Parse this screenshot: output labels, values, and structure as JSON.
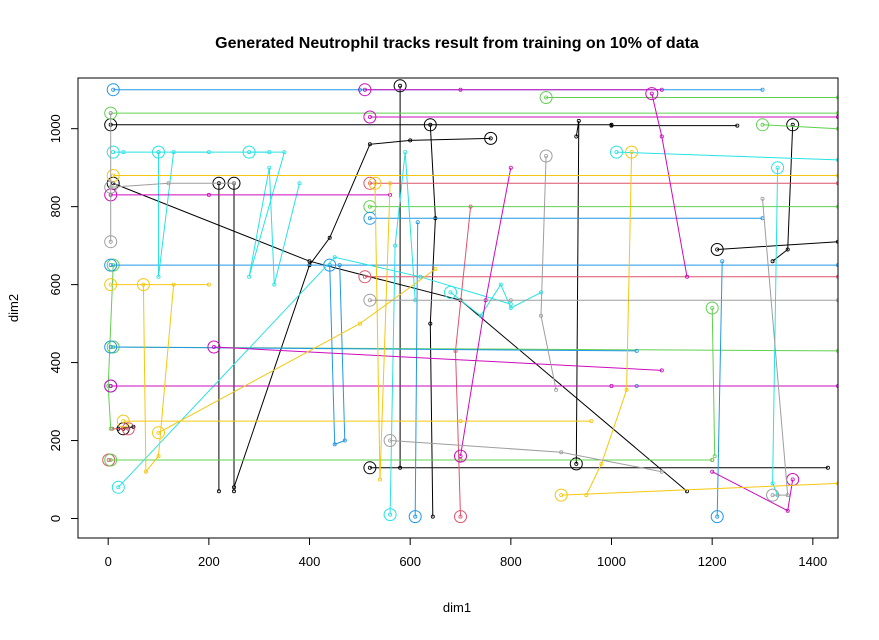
{
  "chart_data": {
    "type": "line",
    "title": "Generated Neutrophil tracks result from training on 10% of data",
    "xlabel": "dim1",
    "ylabel": "dim2",
    "xlim": [
      -60,
      1450
    ],
    "ylim": [
      -50,
      1130
    ],
    "x_ticks": [
      "0",
      "200",
      "400",
      "600",
      "800",
      "1000",
      "1200",
      "1400"
    ],
    "y_ticks": [
      "0",
      "200",
      "400",
      "600",
      "800",
      "1000"
    ],
    "x_tick_values": [
      0,
      200,
      400,
      600,
      800,
      1000,
      1200,
      1400
    ],
    "y_tick_values": [
      0,
      200,
      400,
      600,
      800,
      1000
    ],
    "palette": [
      "#000000",
      "#DF536B",
      "#61D04F",
      "#2297E6",
      "#28E2E5",
      "#CD0BBC",
      "#F5C710",
      "#9E9E9E"
    ],
    "grid": false,
    "legend": "none",
    "series": [
      {
        "color": "#000000",
        "points": [
          [
            5,
            1010
          ],
          [
            1000,
            1010
          ],
          [
            1000,
            1008
          ],
          [
            1250,
            1008
          ]
        ]
      },
      {
        "color": "#000000",
        "points": [
          [
            520,
            130
          ],
          [
            1430,
            130
          ]
        ]
      },
      {
        "color": "#000000",
        "points": [
          [
            640,
            1010
          ],
          [
            650,
            770
          ],
          [
            640,
            500
          ],
          [
            645,
            5
          ]
        ]
      },
      {
        "color": "#000000",
        "points": [
          [
            220,
            860
          ],
          [
            220,
            70
          ]
        ]
      },
      {
        "color": "#000000",
        "points": [
          [
            250,
            860
          ],
          [
            250,
            70
          ]
        ]
      },
      {
        "color": "#000000",
        "points": [
          [
            760,
            975
          ],
          [
            600,
            970
          ],
          [
            520,
            960
          ],
          [
            440,
            720
          ],
          [
            400,
            650
          ],
          [
            250,
            80
          ]
        ]
      },
      {
        "color": "#000000",
        "points": [
          [
            1210,
            690
          ],
          [
            1450,
            710
          ]
        ]
      },
      {
        "color": "#000000",
        "points": [
          [
            10,
            860
          ],
          [
            400,
            660
          ],
          [
            700,
            560
          ],
          [
            1150,
            70
          ]
        ]
      },
      {
        "color": "#000000",
        "points": [
          [
            580,
            1110
          ],
          [
            580,
            130
          ]
        ]
      },
      {
        "color": "#000000",
        "points": [
          [
            30,
            230
          ],
          [
            20,
            230
          ],
          [
            50,
            235
          ]
        ]
      },
      {
        "color": "#000000",
        "points": [
          [
            1360,
            1010
          ],
          [
            1350,
            690
          ],
          [
            1320,
            660
          ]
        ]
      },
      {
        "color": "#000000",
        "points": [
          [
            930,
            140
          ],
          [
            935,
            1020
          ],
          [
            930,
            980
          ]
        ]
      },
      {
        "color": "#DF536B",
        "points": [
          [
            520,
            860
          ],
          [
            1450,
            860
          ]
        ]
      },
      {
        "color": "#DF536B",
        "points": [
          [
            1,
            150
          ],
          [
            700,
            150
          ],
          [
            1200,
            150
          ]
        ]
      },
      {
        "color": "#DF536B",
        "points": [
          [
            510,
            620
          ],
          [
            1450,
            620
          ]
        ]
      },
      {
        "color": "#DF536B",
        "points": [
          [
            700,
            5
          ],
          [
            690,
            430
          ],
          [
            720,
            800
          ]
        ]
      },
      {
        "color": "#DF536B",
        "points": [
          [
            40,
            230
          ],
          [
            8,
            230
          ]
        ]
      },
      {
        "color": "#61D04F",
        "points": [
          [
            5,
            1040
          ],
          [
            1450,
            1040
          ]
        ]
      },
      {
        "color": "#61D04F",
        "points": [
          [
            5,
            150
          ],
          [
            1200,
            150
          ]
        ]
      },
      {
        "color": "#61D04F",
        "points": [
          [
            520,
            800
          ],
          [
            1450,
            800
          ]
        ]
      },
      {
        "color": "#61D04F",
        "points": [
          [
            870,
            1080
          ],
          [
            1450,
            1080
          ]
        ]
      },
      {
        "color": "#61D04F",
        "points": [
          [
            10,
            440
          ],
          [
            1450,
            430
          ]
        ]
      },
      {
        "color": "#61D04F",
        "points": [
          [
            10,
            650
          ],
          [
            0,
            340
          ],
          [
            5,
            230
          ]
        ]
      },
      {
        "color": "#61D04F",
        "points": [
          [
            1200,
            540
          ],
          [
            1205,
            160
          ]
        ]
      },
      {
        "color": "#61D04F",
        "points": [
          [
            1300,
            1010
          ],
          [
            1450,
            1000
          ]
        ]
      },
      {
        "color": "#2297E6",
        "points": [
          [
            10,
            1100
          ],
          [
            500,
            1100
          ],
          [
            1300,
            1100
          ]
        ]
      },
      {
        "color": "#2297E6",
        "points": [
          [
            5,
            650
          ],
          [
            1450,
            650
          ]
        ]
      },
      {
        "color": "#2297E6",
        "points": [
          [
            5,
            440
          ],
          [
            1050,
            430
          ]
        ]
      },
      {
        "color": "#2297E6",
        "points": [
          [
            5,
            340
          ],
          [
            1050,
            340
          ]
        ]
      },
      {
        "color": "#2297E6",
        "points": [
          [
            440,
            650
          ],
          [
            450,
            190
          ],
          [
            470,
            200
          ],
          [
            460,
            650
          ]
        ]
      },
      {
        "color": "#2297E6",
        "points": [
          [
            1210,
            5
          ],
          [
            1220,
            660
          ]
        ]
      },
      {
        "color": "#2297E6",
        "points": [
          [
            520,
            770
          ],
          [
            1300,
            770
          ]
        ]
      },
      {
        "color": "#2297E6",
        "points": [
          [
            610,
            5
          ],
          [
            615,
            760
          ]
        ]
      },
      {
        "color": "#28E2E5",
        "points": [
          [
            10,
            940
          ],
          [
            30,
            940
          ],
          [
            100,
            940
          ],
          [
            100,
            620
          ],
          [
            130,
            940
          ],
          [
            200,
            940
          ]
        ]
      },
      {
        "color": "#28E2E5",
        "points": [
          [
            20,
            80
          ],
          [
            450,
            670
          ],
          [
            620,
            620
          ],
          [
            800,
            550
          ]
        ]
      },
      {
        "color": "#28E2E5",
        "points": [
          [
            280,
            940
          ],
          [
            350,
            940
          ],
          [
            280,
            620
          ],
          [
            320,
            900
          ],
          [
            330,
            600
          ],
          [
            380,
            860
          ]
        ]
      },
      {
        "color": "#28E2E5",
        "points": [
          [
            100,
            940
          ],
          [
            320,
            940
          ]
        ]
      },
      {
        "color": "#28E2E5",
        "points": [
          [
            560,
            10
          ],
          [
            570,
            700
          ],
          [
            590,
            940
          ],
          [
            610,
            560
          ]
        ]
      },
      {
        "color": "#28E2E5",
        "points": [
          [
            1010,
            940
          ],
          [
            1450,
            920
          ]
        ]
      },
      {
        "color": "#28E2E5",
        "points": [
          [
            680,
            580
          ],
          [
            740,
            520
          ],
          [
            780,
            600
          ],
          [
            800,
            540
          ],
          [
            860,
            580
          ]
        ]
      },
      {
        "color": "#28E2E5",
        "points": [
          [
            1330,
            900
          ],
          [
            1320,
            90
          ],
          [
            1330,
            60
          ]
        ]
      },
      {
        "color": "#CD0BBC",
        "points": [
          [
            510,
            1100
          ],
          [
            700,
            1100
          ],
          [
            1100,
            1100
          ]
        ]
      },
      {
        "color": "#CD0BBC",
        "points": [
          [
            5,
            830
          ],
          [
            200,
            830
          ],
          [
            560,
            830
          ]
        ]
      },
      {
        "color": "#CD0BBC",
        "points": [
          [
            5,
            340
          ],
          [
            1000,
            340
          ],
          [
            1450,
            340
          ]
        ]
      },
      {
        "color": "#CD0BBC",
        "points": [
          [
            700,
            160
          ],
          [
            750,
            560
          ],
          [
            800,
            900
          ]
        ]
      },
      {
        "color": "#CD0BBC",
        "points": [
          [
            1360,
            100
          ],
          [
            1350,
            20
          ],
          [
            1200,
            120
          ]
        ]
      },
      {
        "color": "#CD0BBC",
        "points": [
          [
            1080,
            1090
          ],
          [
            1100,
            980
          ],
          [
            1150,
            620
          ]
        ]
      },
      {
        "color": "#CD0BBC",
        "points": [
          [
            520,
            1030
          ],
          [
            1450,
            1030
          ]
        ]
      },
      {
        "color": "#CD0BBC",
        "points": [
          [
            210,
            440
          ],
          [
            1100,
            380
          ]
        ]
      },
      {
        "color": "#F5C710",
        "points": [
          [
            10,
            880
          ],
          [
            1450,
            880
          ]
        ]
      },
      {
        "color": "#F5C710",
        "points": [
          [
            5,
            600
          ],
          [
            200,
            600
          ]
        ]
      },
      {
        "color": "#F5C710",
        "points": [
          [
            70,
            600
          ],
          [
            75,
            120
          ],
          [
            100,
            160
          ],
          [
            130,
            600
          ]
        ]
      },
      {
        "color": "#F5C710",
        "points": [
          [
            30,
            250
          ],
          [
            700,
            250
          ],
          [
            960,
            250
          ]
        ]
      },
      {
        "color": "#F5C710",
        "points": [
          [
            530,
            860
          ],
          [
            540,
            100
          ],
          [
            560,
            860
          ]
        ]
      },
      {
        "color": "#F5C710",
        "points": [
          [
            900,
            60
          ],
          [
            1450,
            90
          ]
        ]
      },
      {
        "color": "#F5C710",
        "points": [
          [
            1040,
            940
          ],
          [
            1030,
            330
          ],
          [
            980,
            140
          ],
          [
            950,
            60
          ]
        ]
      },
      {
        "color": "#F5C710",
        "points": [
          [
            100,
            220
          ],
          [
            500,
            500
          ],
          [
            650,
            640
          ]
        ]
      },
      {
        "color": "#9E9E9E",
        "points": [
          [
            5,
            850
          ],
          [
            120,
            860
          ],
          [
            250,
            860
          ]
        ]
      },
      {
        "color": "#9E9E9E",
        "points": [
          [
            520,
            560
          ],
          [
            800,
            560
          ],
          [
            1450,
            560
          ]
        ]
      },
      {
        "color": "#9E9E9E",
        "points": [
          [
            5,
            710
          ],
          [
            5,
            1040
          ]
        ]
      },
      {
        "color": "#9E9E9E",
        "points": [
          [
            1320,
            60
          ],
          [
            1350,
            60
          ],
          [
            1300,
            820
          ]
        ]
      },
      {
        "color": "#9E9E9E",
        "points": [
          [
            560,
            200
          ],
          [
            900,
            170
          ],
          [
            1100,
            120
          ]
        ]
      },
      {
        "color": "#9E9E9E",
        "points": [
          [
            870,
            930
          ],
          [
            860,
            520
          ],
          [
            890,
            330
          ]
        ]
      }
    ]
  }
}
